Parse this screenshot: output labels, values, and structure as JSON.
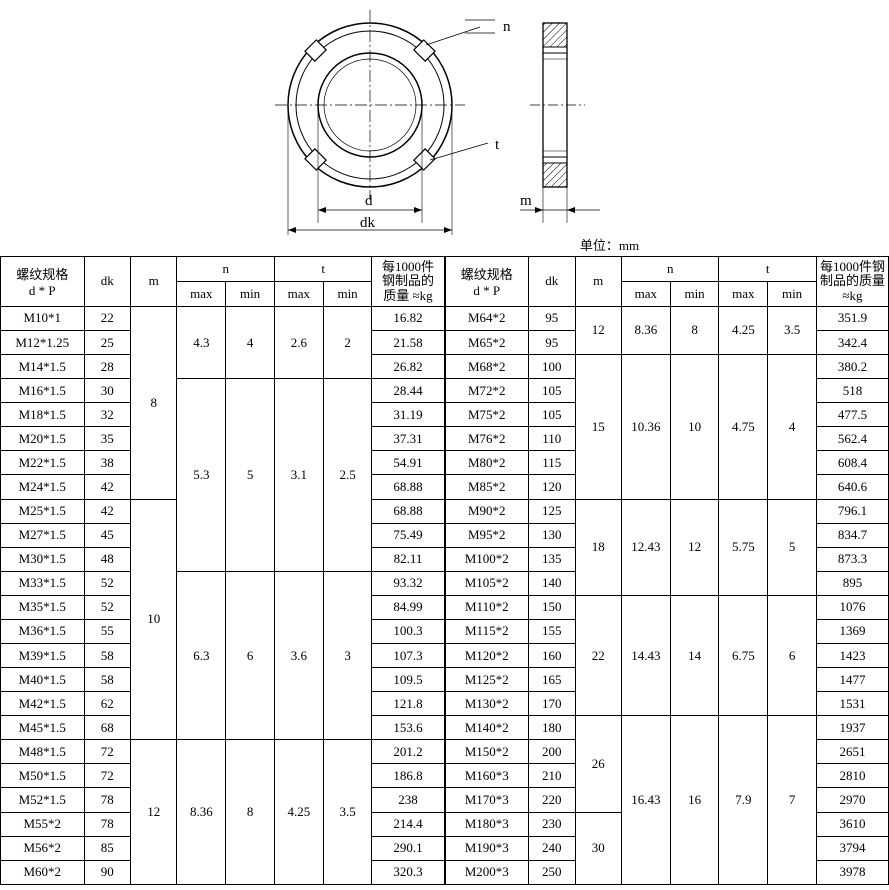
{
  "diagram": {
    "labels": {
      "n": "n",
      "t": "t",
      "m": "m",
      "d": "d",
      "dk": "dk"
    },
    "stroke": "#000000",
    "hatch": "#000000"
  },
  "unit_label": "单位：mm",
  "headers": {
    "spec_line1": "螺纹规格",
    "spec_line2": "d * P",
    "dk": "dk",
    "m": "m",
    "n": "n",
    "t": "t",
    "max": "max",
    "min": "min",
    "weight_line1": "每1000件",
    "weight_line2": "钢制品的",
    "weight_line3": "质量 ≈kg",
    "weight_r_line1": "每1000件钢",
    "weight_r_line2": "制品的质量",
    "weight_r_line3": "≈kg"
  },
  "left_rows": [
    {
      "spec": "M10*1",
      "dk": "22",
      "m": "8",
      "n_max": "4.3",
      "n_min": "4",
      "t_max": "2.6",
      "t_min": "2",
      "wt": "16.82"
    },
    {
      "spec": "M12*1.25",
      "dk": "25",
      "m": "",
      "n_max": "",
      "n_min": "",
      "t_max": "",
      "t_min": "",
      "wt": "21.58"
    },
    {
      "spec": "M14*1.5",
      "dk": "28",
      "m": "",
      "n_max": "",
      "n_min": "",
      "t_max": "",
      "t_min": "",
      "wt": "26.82"
    },
    {
      "spec": "M16*1.5",
      "dk": "30",
      "m": "",
      "n_max": "5.3",
      "n_min": "5",
      "t_max": "3.1",
      "t_min": "2.5",
      "wt": "28.44"
    },
    {
      "spec": "M18*1.5",
      "dk": "32",
      "m": "",
      "n_max": "",
      "n_min": "",
      "t_max": "",
      "t_min": "",
      "wt": "31.19"
    },
    {
      "spec": "M20*1.5",
      "dk": "35",
      "m": "",
      "n_max": "",
      "n_min": "",
      "t_max": "",
      "t_min": "",
      "wt": "37.31"
    },
    {
      "spec": "M22*1.5",
      "dk": "38",
      "m": "",
      "n_max": "",
      "n_min": "",
      "t_max": "",
      "t_min": "",
      "wt": "54.91"
    },
    {
      "spec": "M24*1.5",
      "dk": "42",
      "m": "",
      "n_max": "",
      "n_min": "",
      "t_max": "",
      "t_min": "",
      "wt": "68.88"
    },
    {
      "spec": "M25*1.5",
      "dk": "42",
      "m": "10",
      "n_max": "",
      "n_min": "",
      "t_max": "",
      "t_min": "",
      "wt": "68.88"
    },
    {
      "spec": "M27*1.5",
      "dk": "45",
      "m": "",
      "n_max": "",
      "n_min": "",
      "t_max": "",
      "t_min": "",
      "wt": "75.49"
    },
    {
      "spec": "M30*1.5",
      "dk": "48",
      "m": "",
      "n_max": "",
      "n_min": "",
      "t_max": "",
      "t_min": "",
      "wt": "82.11"
    },
    {
      "spec": "M33*1.5",
      "dk": "52",
      "m": "",
      "n_max": "6.3",
      "n_min": "6",
      "t_max": "3.6",
      "t_min": "3",
      "wt": "93.32"
    },
    {
      "spec": "M35*1.5",
      "dk": "52",
      "m": "",
      "n_max": "",
      "n_min": "",
      "t_max": "",
      "t_min": "",
      "wt": "84.99"
    },
    {
      "spec": "M36*1.5",
      "dk": "55",
      "m": "",
      "n_max": "",
      "n_min": "",
      "t_max": "",
      "t_min": "",
      "wt": "100.3"
    },
    {
      "spec": "M39*1.5",
      "dk": "58",
      "m": "",
      "n_max": "",
      "n_min": "",
      "t_max": "",
      "t_min": "",
      "wt": "107.3"
    },
    {
      "spec": "M40*1.5",
      "dk": "58",
      "m": "",
      "n_max": "",
      "n_min": "",
      "t_max": "",
      "t_min": "",
      "wt": "109.5"
    },
    {
      "spec": "M42*1.5",
      "dk": "62",
      "m": "",
      "n_max": "",
      "n_min": "",
      "t_max": "",
      "t_min": "",
      "wt": "121.8"
    },
    {
      "spec": "M45*1.5",
      "dk": "68",
      "m": "",
      "n_max": "",
      "n_min": "",
      "t_max": "",
      "t_min": "",
      "wt": "153.6"
    },
    {
      "spec": "M48*1.5",
      "dk": "72",
      "m": "12",
      "n_max": "8.36",
      "n_min": "8",
      "t_max": "4.25",
      "t_min": "3.5",
      "wt": "201.2"
    },
    {
      "spec": "M50*1.5",
      "dk": "72",
      "m": "",
      "n_max": "",
      "n_min": "",
      "t_max": "",
      "t_min": "",
      "wt": "186.8"
    },
    {
      "spec": "M52*1.5",
      "dk": "78",
      "m": "",
      "n_max": "",
      "n_min": "",
      "t_max": "",
      "t_min": "",
      "wt": "238"
    },
    {
      "spec": "M55*2",
      "dk": "78",
      "m": "",
      "n_max": "",
      "n_min": "",
      "t_max": "",
      "t_min": "",
      "wt": "214.4"
    },
    {
      "spec": "M56*2",
      "dk": "85",
      "m": "",
      "n_max": "",
      "n_min": "",
      "t_max": "",
      "t_min": "",
      "wt": "290.1"
    },
    {
      "spec": "M60*2",
      "dk": "90",
      "m": "",
      "n_max": "",
      "n_min": "",
      "t_max": "",
      "t_min": "",
      "wt": "320.3"
    }
  ],
  "left_spans": {
    "m": [
      {
        "start": 0,
        "span": 8,
        "val": "8"
      },
      {
        "start": 8,
        "span": 10,
        "val": "10"
      },
      {
        "start": 18,
        "span": 6,
        "val": "12"
      }
    ],
    "n_max": [
      {
        "start": 0,
        "span": 3,
        "val": "4.3"
      },
      {
        "start": 3,
        "span": 8,
        "val": "5.3"
      },
      {
        "start": 11,
        "span": 7,
        "val": "6.3"
      },
      {
        "start": 18,
        "span": 6,
        "val": "8.36"
      }
    ],
    "n_min": [
      {
        "start": 0,
        "span": 3,
        "val": "4"
      },
      {
        "start": 3,
        "span": 8,
        "val": "5"
      },
      {
        "start": 11,
        "span": 7,
        "val": "6"
      },
      {
        "start": 18,
        "span": 6,
        "val": "8"
      }
    ],
    "t_max": [
      {
        "start": 0,
        "span": 3,
        "val": "2.6"
      },
      {
        "start": 3,
        "span": 8,
        "val": "3.1"
      },
      {
        "start": 11,
        "span": 7,
        "val": "3.6"
      },
      {
        "start": 18,
        "span": 6,
        "val": "4.25"
      }
    ],
    "t_min": [
      {
        "start": 0,
        "span": 3,
        "val": "2"
      },
      {
        "start": 3,
        "span": 8,
        "val": "2.5"
      },
      {
        "start": 11,
        "span": 7,
        "val": "3"
      },
      {
        "start": 18,
        "span": 6,
        "val": "3.5"
      }
    ]
  },
  "right_rows": [
    {
      "spec": "M64*2",
      "dk": "95",
      "wt": "351.9"
    },
    {
      "spec": "M65*2",
      "dk": "95",
      "wt": "342.4"
    },
    {
      "spec": "M68*2",
      "dk": "100",
      "wt": "380.2"
    },
    {
      "spec": "M72*2",
      "dk": "105",
      "wt": "518"
    },
    {
      "spec": "M75*2",
      "dk": "105",
      "wt": "477.5"
    },
    {
      "spec": "M76*2",
      "dk": "110",
      "wt": "562.4"
    },
    {
      "spec": "M80*2",
      "dk": "115",
      "wt": "608.4"
    },
    {
      "spec": "M85*2",
      "dk": "120",
      "wt": "640.6"
    },
    {
      "spec": "M90*2",
      "dk": "125",
      "wt": "796.1"
    },
    {
      "spec": "M95*2",
      "dk": "130",
      "wt": "834.7"
    },
    {
      "spec": "M100*2",
      "dk": "135",
      "wt": "873.3"
    },
    {
      "spec": "M105*2",
      "dk": "140",
      "wt": "895"
    },
    {
      "spec": "M110*2",
      "dk": "150",
      "wt": "1076"
    },
    {
      "spec": "M115*2",
      "dk": "155",
      "wt": "1369"
    },
    {
      "spec": "M120*2",
      "dk": "160",
      "wt": "1423"
    },
    {
      "spec": "M125*2",
      "dk": "165",
      "wt": "1477"
    },
    {
      "spec": "M130*2",
      "dk": "170",
      "wt": "1531"
    },
    {
      "spec": "M140*2",
      "dk": "180",
      "wt": "1937"
    },
    {
      "spec": "M150*2",
      "dk": "200",
      "wt": "2651"
    },
    {
      "spec": "M160*3",
      "dk": "210",
      "wt": "2810"
    },
    {
      "spec": "M170*3",
      "dk": "220",
      "wt": "2970"
    },
    {
      "spec": "M180*3",
      "dk": "230",
      "wt": "3610"
    },
    {
      "spec": "M190*3",
      "dk": "240",
      "wt": "3794"
    },
    {
      "spec": "M200*3",
      "dk": "250",
      "wt": "3978"
    }
  ],
  "right_spans": {
    "m": [
      {
        "start": 0,
        "span": 2,
        "val": "12"
      },
      {
        "start": 2,
        "span": 6,
        "val": "15"
      },
      {
        "start": 8,
        "span": 4,
        "val": "18"
      },
      {
        "start": 12,
        "span": 5,
        "val": "22"
      },
      {
        "start": 17,
        "span": 4,
        "val": "26"
      },
      {
        "start": 21,
        "span": 3,
        "val": "30"
      }
    ],
    "n_max": [
      {
        "start": 0,
        "span": 2,
        "val": "8.36"
      },
      {
        "start": 2,
        "span": 6,
        "val": "10.36"
      },
      {
        "start": 8,
        "span": 4,
        "val": "12.43"
      },
      {
        "start": 12,
        "span": 5,
        "val": "14.43"
      },
      {
        "start": 17,
        "span": 7,
        "val": "16.43"
      }
    ],
    "n_min": [
      {
        "start": 0,
        "span": 2,
        "val": "8"
      },
      {
        "start": 2,
        "span": 6,
        "val": "10"
      },
      {
        "start": 8,
        "span": 4,
        "val": "12"
      },
      {
        "start": 12,
        "span": 5,
        "val": "14"
      },
      {
        "start": 17,
        "span": 7,
        "val": "16"
      }
    ],
    "t_max": [
      {
        "start": 0,
        "span": 2,
        "val": "4.25"
      },
      {
        "start": 2,
        "span": 6,
        "val": "4.75"
      },
      {
        "start": 8,
        "span": 4,
        "val": "5.75"
      },
      {
        "start": 12,
        "span": 5,
        "val": "6.75"
      },
      {
        "start": 17,
        "span": 7,
        "val": "7.9"
      }
    ],
    "t_min": [
      {
        "start": 0,
        "span": 2,
        "val": "3.5"
      },
      {
        "start": 2,
        "span": 6,
        "val": "4"
      },
      {
        "start": 8,
        "span": 4,
        "val": "5"
      },
      {
        "start": 12,
        "span": 5,
        "val": "6"
      },
      {
        "start": 17,
        "span": 7,
        "val": "7"
      }
    ]
  }
}
